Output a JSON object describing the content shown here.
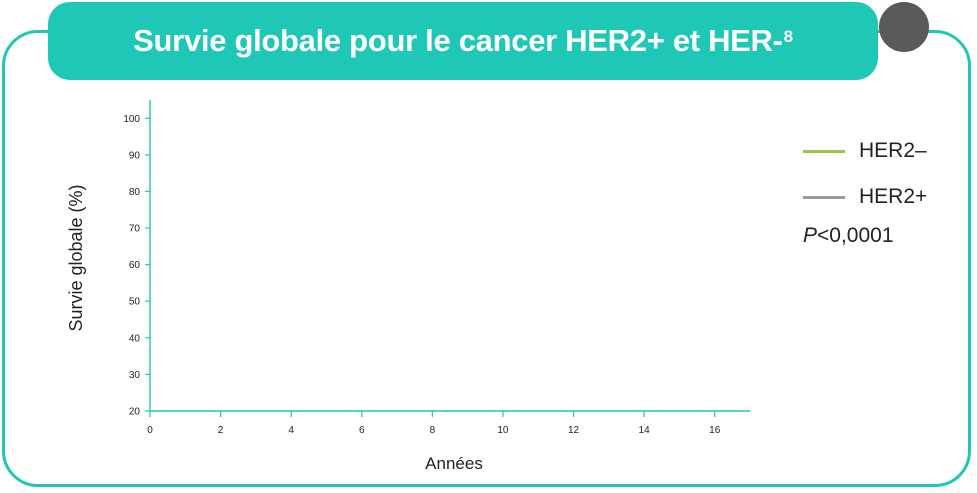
{
  "title": {
    "text": "Survie globale pour le cancer HER2+ et HER-",
    "superscript": "8"
  },
  "colors": {
    "accent": "#1fc7b6",
    "corner_tab": "#5a5a5a",
    "axis": "#1fc7b6"
  },
  "legend": {
    "items": [
      {
        "label": "HER2–",
        "color": "#9cc43c"
      },
      {
        "label": "HER2+",
        "color": "#9b9b9b"
      }
    ],
    "p_symbol": "P",
    "p_value": "<0,0001"
  },
  "chart_data": {
    "type": "line",
    "xlabel": "Années",
    "ylabel": "Survie globale (%)",
    "xlim": [
      0,
      17
    ],
    "ylim": [
      20,
      105
    ],
    "x_ticks": [
      0,
      2,
      4,
      6,
      8,
      10,
      12,
      14,
      16
    ],
    "y_ticks": [
      20,
      30,
      40,
      50,
      60,
      70,
      80,
      90,
      100
    ],
    "x_tick_labels": [
      "0",
      "2",
      "4",
      "6",
      "8",
      "10",
      "12",
      "14",
      "16"
    ],
    "y_tick_labels": [
      "20",
      "30",
      "40",
      "50",
      "60",
      "70",
      "80",
      "90",
      "100"
    ],
    "series": [
      {
        "name": "HER2–",
        "color": "#9cc43c",
        "x": [],
        "y": []
      },
      {
        "name": "HER2+",
        "color": "#9b9b9b",
        "x": [],
        "y": []
      }
    ],
    "grid": false,
    "legend_position": "right"
  }
}
